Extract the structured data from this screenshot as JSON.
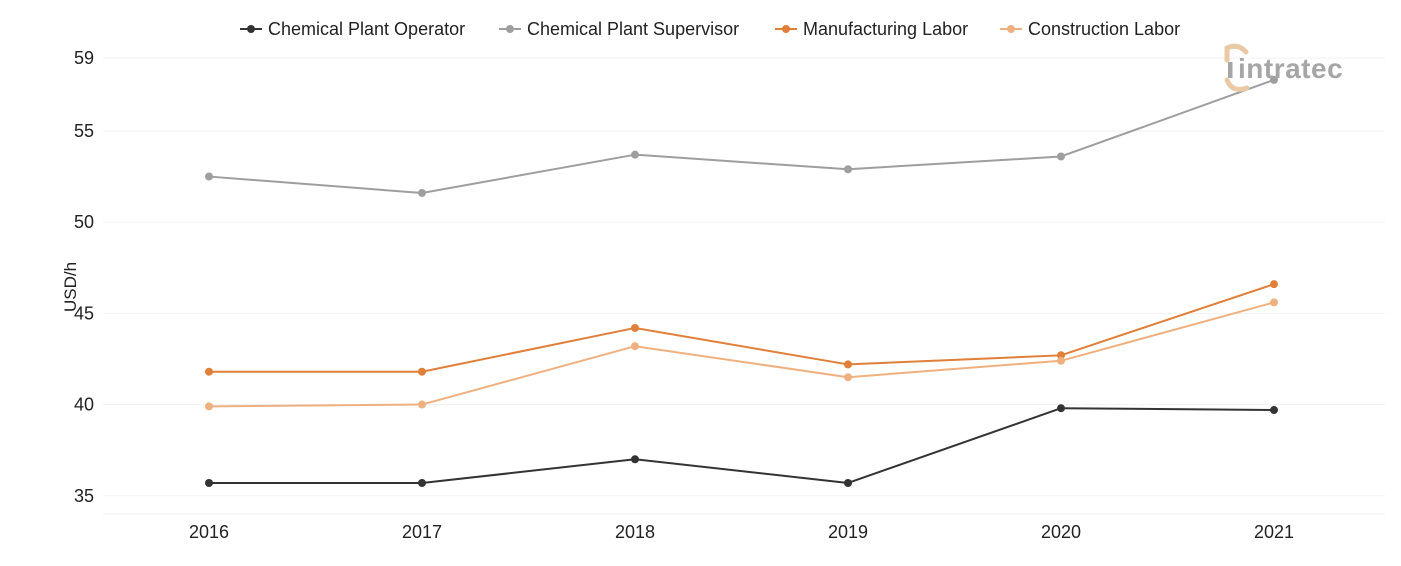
{
  "colors": {
    "chemical_plant_operator": "#333333",
    "chemical_plant_supervisor": "#9e9e9e",
    "manufacturing_labor": "#e07f38",
    "construction_labor": "#efb080",
    "gridline": "#f2f2f2",
    "logo_gray": "#a6a6a6",
    "logo_accent": "#e9c9a6"
  },
  "logo": {
    "text": "intratec",
    "icon": "intratec-logo-icon"
  },
  "chart_data": {
    "type": "line",
    "title": "",
    "xlabel": "",
    "ylabel": "USD/h",
    "categories": [
      "2016",
      "2017",
      "2018",
      "2019",
      "2020",
      "2021"
    ],
    "ylim": [
      34,
      59
    ],
    "yticks": [
      35,
      40,
      45,
      50,
      55,
      59
    ],
    "grid": true,
    "legend_position": "top",
    "series": [
      {
        "name": "Chemical Plant Operator",
        "color": "#333333",
        "values": [
          35.7,
          35.7,
          37.0,
          35.7,
          39.8,
          39.7
        ]
      },
      {
        "name": "Chemical Plant Supervisor",
        "color": "#9e9e9e",
        "values": [
          52.5,
          51.6,
          53.7,
          52.9,
          53.6,
          57.8
        ]
      },
      {
        "name": "Manufacturing Labor",
        "color": "#e07f38",
        "values": [
          41.8,
          41.8,
          44.2,
          42.2,
          42.7,
          46.6
        ]
      },
      {
        "name": "Construction Labor",
        "color": "#efb080",
        "values": [
          39.9,
          40.0,
          43.2,
          41.5,
          42.4,
          45.6
        ]
      }
    ]
  }
}
